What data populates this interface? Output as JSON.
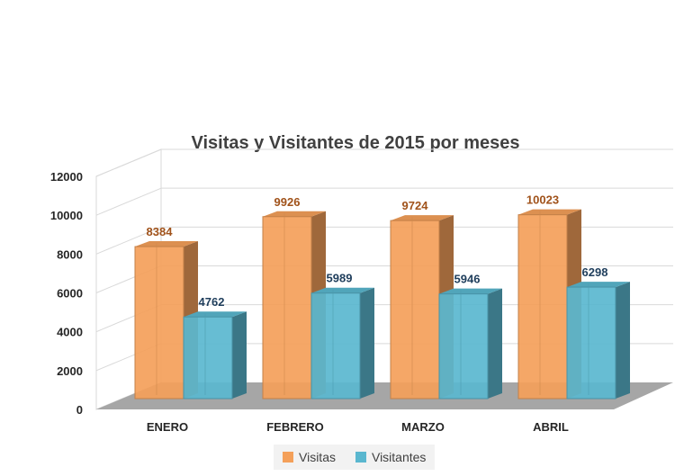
{
  "chart_data": {
    "type": "bar",
    "title": "Visitas y Visitantes de 2015 por meses",
    "categories": [
      "ENERO",
      "FEBRERO",
      "MARZO",
      "ABRIL"
    ],
    "series": [
      {
        "name": "Visitas",
        "values": [
          8384,
          9926,
          9724,
          10023
        ],
        "color": "#f4a05a"
      },
      {
        "name": "Visitantes",
        "values": [
          4762,
          5989,
          5946,
          6298
        ],
        "color": "#5ab7cf"
      }
    ],
    "ylim": [
      0,
      12000
    ],
    "yticks": [
      "0",
      "2000",
      "4000",
      "6000",
      "8000",
      "10000",
      "12000"
    ],
    "label_colors": [
      "#a0521a",
      "#1f3e5c"
    ],
    "legend_position": "bottom"
  }
}
